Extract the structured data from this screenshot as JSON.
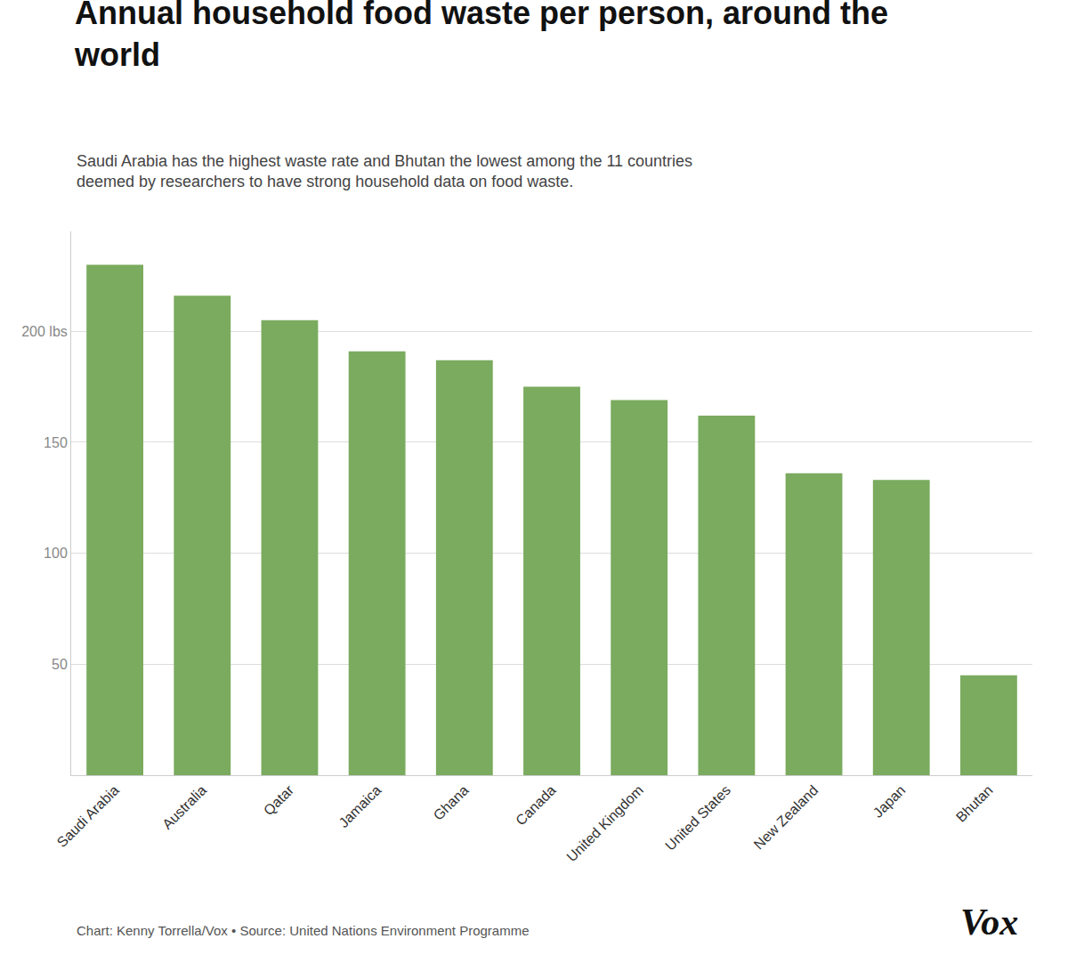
{
  "chart_data": {
    "type": "bar",
    "title": "Annual household food waste per person, around the\nworld",
    "subtitle": "Saudi Arabia has the highest waste rate and Bhutan the lowest among the 11 countries\ndeemed by researchers to have strong household data on food waste.",
    "annotations": [
      "Chart: Kenny Torrella/Vox • Source: United Nations Environment Programme",
      "Vox"
    ],
    "categories": [
      "Saudi Arabia",
      "Australia",
      "Qatar",
      "Jamaica",
      "Ghana",
      "Canada",
      "United Kingdom",
      "United States",
      "New Zealand",
      "Japan",
      "Bhutan"
    ],
    "values": [
      230,
      216,
      205,
      191,
      187,
      175,
      169,
      162,
      136,
      133,
      45
    ],
    "color": "#7aab5e",
    "ylim": [
      0,
      245
    ],
    "yticks": [
      50,
      100,
      150,
      {
        "value": 200,
        "label": "200 lbs"
      }
    ],
    "grid": true
  }
}
